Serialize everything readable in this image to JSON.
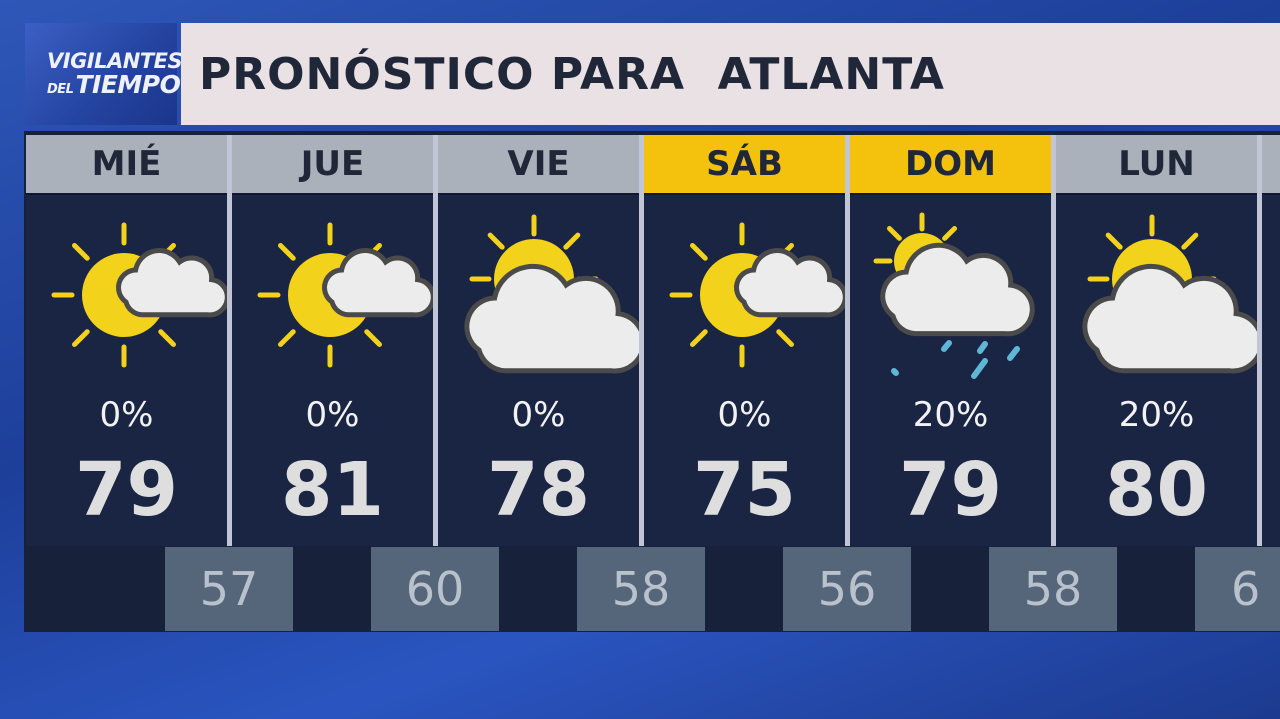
{
  "logo": {
    "line1": "VIGILANTES",
    "line2_small": "DEL",
    "line2": "TIEMPO"
  },
  "title": "PRONÓSTICO PARA  ATLANTA",
  "colors": {
    "header": "#aab1bb",
    "weekend_header": "#f4c20d",
    "panel": "#1a2443",
    "sun": "#f2d21a",
    "cloud": "#ececec",
    "rain": "#5fb7d8"
  },
  "days": [
    {
      "day": "MIÉ",
      "weekend": false,
      "icon": "partly-sunny",
      "precip": "0%",
      "high": "79",
      "low": "57"
    },
    {
      "day": "JUE",
      "weekend": false,
      "icon": "partly-sunny",
      "precip": "0%",
      "high": "81",
      "low": "60"
    },
    {
      "day": "VIE",
      "weekend": false,
      "icon": "mostly-cloudy",
      "precip": "0%",
      "high": "78",
      "low": "58"
    },
    {
      "day": "SÁB",
      "weekend": true,
      "icon": "partly-sunny",
      "precip": "0%",
      "high": "75",
      "low": "56"
    },
    {
      "day": "DOM",
      "weekend": true,
      "icon": "sun-cloud-rain",
      "precip": "20%",
      "high": "79",
      "low": "58"
    },
    {
      "day": "LUN",
      "weekend": false,
      "icon": "mostly-cloudy",
      "precip": "20%",
      "high": "80",
      "low": "6"
    }
  ]
}
